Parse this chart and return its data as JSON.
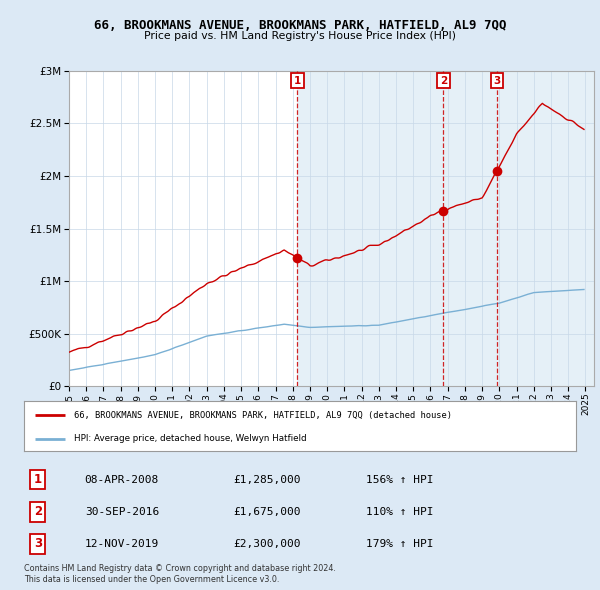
{
  "title": "66, BROOKMANS AVENUE, BROOKMANS PARK, HATFIELD, AL9 7QQ",
  "subtitle": "Price paid vs. HM Land Registry's House Price Index (HPI)",
  "legend_line1": "66, BROOKMANS AVENUE, BROOKMANS PARK, HATFIELD, AL9 7QQ (detached house)",
  "legend_line2": "HPI: Average price, detached house, Welwyn Hatfield",
  "footer1": "Contains HM Land Registry data © Crown copyright and database right 2024.",
  "footer2": "This data is licensed under the Open Government Licence v3.0.",
  "sales": [
    {
      "num": 1,
      "date": "08-APR-2008",
      "price": 1285000,
      "pct": "156%",
      "year": 2008.27
    },
    {
      "num": 2,
      "date": "30-SEP-2016",
      "price": 1675000,
      "pct": "110%",
      "year": 2016.75
    },
    {
      "num": 3,
      "date": "12-NOV-2019",
      "price": 2300000,
      "pct": "179%",
      "year": 2019.87
    }
  ],
  "red_color": "#cc0000",
  "blue_color": "#7ab0d4",
  "shade_color": "#daeaf5",
  "background_color": "#dce9f5",
  "plot_bg": "#ffffff",
  "ylim": [
    0,
    3000000
  ],
  "xlim": [
    1995,
    2025.5
  ]
}
